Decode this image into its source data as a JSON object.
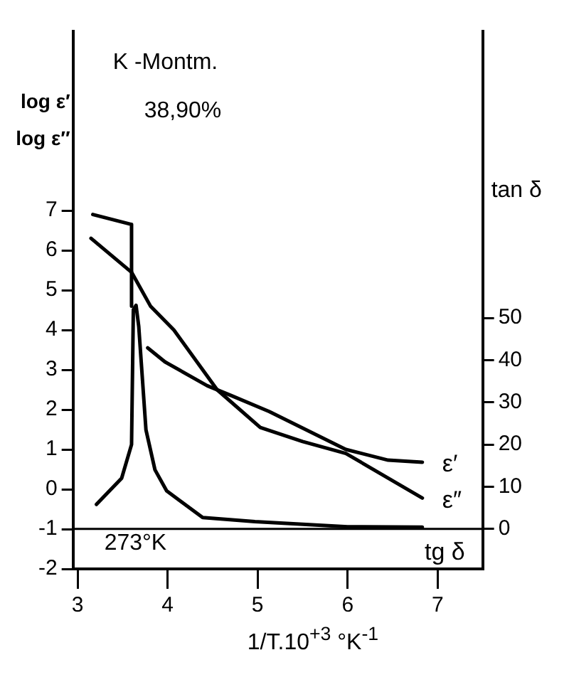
{
  "chart_data": {
    "type": "line",
    "xlabel": "1/T.10$^{+3}$ °K$^{-1}$",
    "ylabel": "log ε′\nlog ε″",
    "y2label": "tan δ",
    "annotations": [
      "K -Montm.",
      "38,90%",
      "273°K"
    ],
    "xlim": [
      2.95,
      7.5
    ],
    "xticks": [
      3,
      4,
      5,
      6,
      7
    ],
    "ylim": [
      -2,
      11.5
    ],
    "yticks": [
      -2,
      -1,
      0,
      1,
      2,
      3,
      4,
      5,
      6,
      7
    ],
    "y2lim": [
      -9.5,
      118
    ],
    "y2ticks": [
      0,
      10,
      20,
      30,
      40,
      50
    ],
    "grid": false,
    "legend": false,
    "marker": "none",
    "line_style": "solid",
    "ref_lines": [
      {
        "axis": "y2",
        "value": 0,
        "color": "#000000"
      }
    ],
    "series": [
      {
        "name": "ε′",
        "color": "#000000",
        "x": [
          3.17,
          3.6,
          3.6,
          3.7,
          3.78,
          3.97,
          4.44,
          4.71,
          5.13,
          5.98,
          6.45,
          6.83
        ],
        "values": [
          6.9,
          6.65,
          4.6,
          null,
          3.55,
          3.2,
          2.6,
          2.35,
          1.95,
          1.0,
          0.73,
          0.68
        ]
      },
      {
        "name": "ε″",
        "color": "#000000",
        "x": [
          3.15,
          3.6,
          3.81,
          4.07,
          4.55,
          5.03,
          5.5,
          5.98,
          6.83
        ],
        "values": [
          6.3,
          5.45,
          4.6,
          4.0,
          2.5,
          1.55,
          1.2,
          0.9,
          -0.22
        ]
      },
      {
        "name": "tg δ",
        "color": "#000000",
        "axis": "y2",
        "x": [
          3.21,
          3.49,
          3.6,
          3.62,
          3.65,
          3.68,
          3.76,
          3.86,
          3.99,
          4.39,
          4.97,
          6.0,
          6.83
        ],
        "values": [
          5.8,
          12,
          20,
          52,
          53,
          48,
          23.5,
          14,
          9,
          2.7,
          1.7,
          0.5,
          0.4
        ]
      }
    ]
  }
}
